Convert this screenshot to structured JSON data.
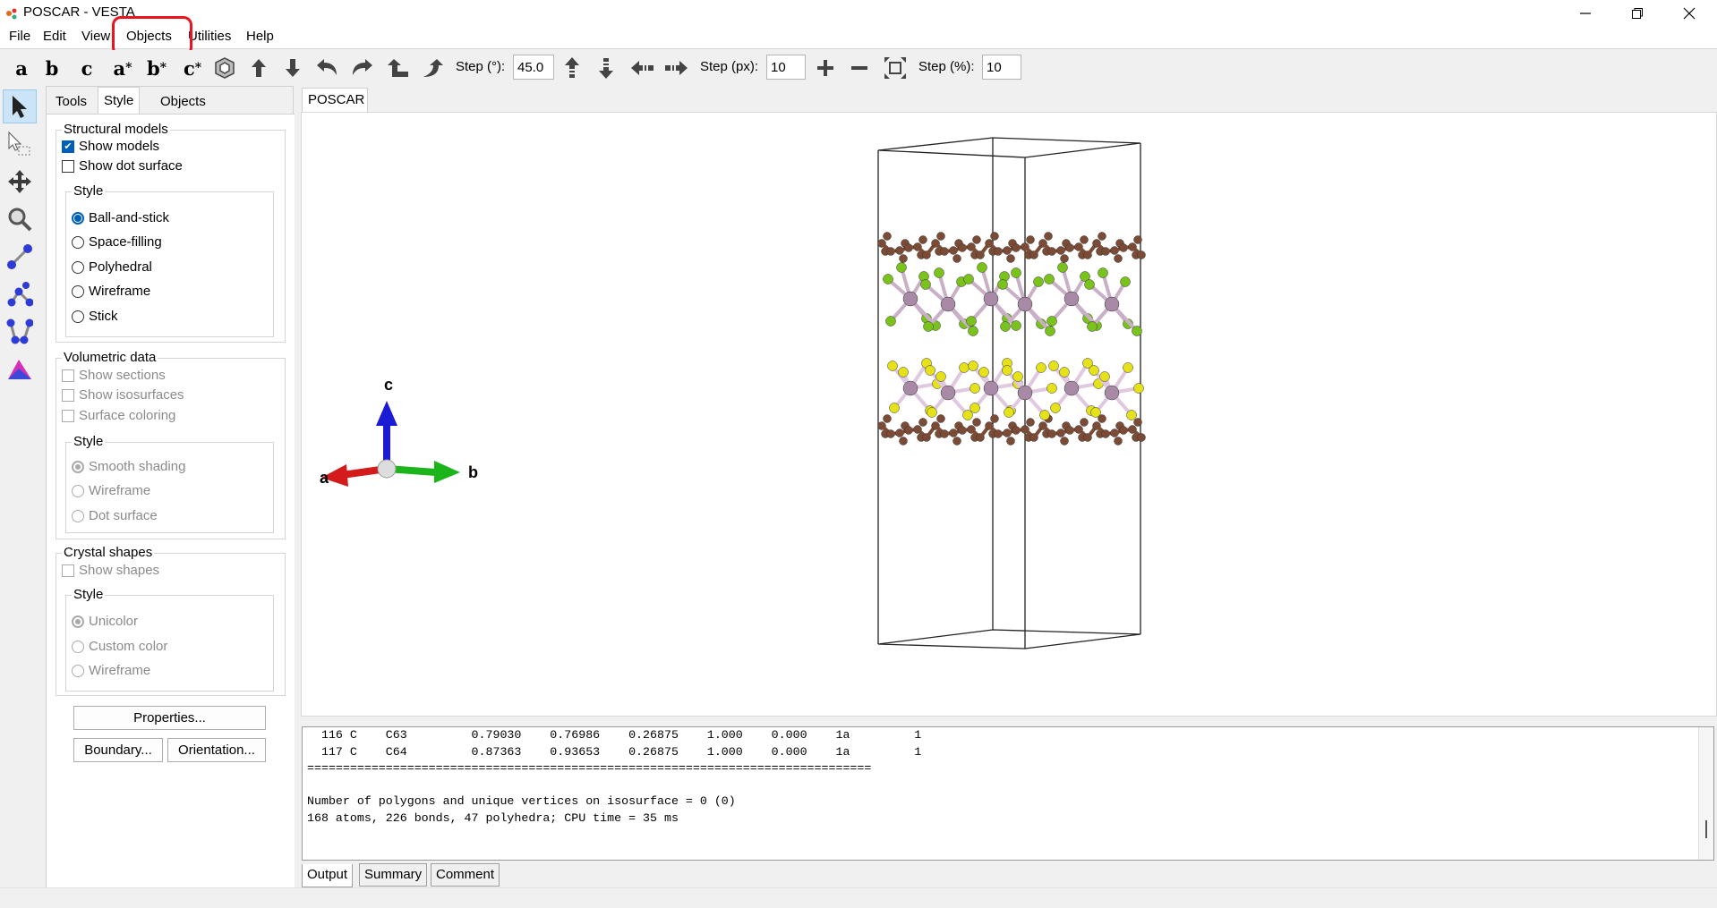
{
  "window": {
    "title": "POSCAR - VESTA"
  },
  "menubar": {
    "items": [
      "File",
      "Edit",
      "View",
      "Objects",
      "Utilities",
      "Help"
    ]
  },
  "toolbar": {
    "axis_buttons": [
      "a",
      "b",
      "c",
      "a",
      "b",
      "c"
    ],
    "axis_star": "*",
    "step_deg_label": "Step (°):",
    "step_deg_value": "45.0",
    "step_px_label": "Step (px):",
    "step_px_value": "10",
    "step_pct_label": "Step (%):",
    "step_pct_value": "10"
  },
  "panel": {
    "tabs": [
      "Tools",
      "Style",
      "Objects"
    ],
    "structural": {
      "title": "Structural models",
      "show_models": "Show models",
      "show_dot_surface": "Show dot surface",
      "style_title": "Style",
      "styles": [
        "Ball-and-stick",
        "Space-filling",
        "Polyhedral",
        "Wireframe",
        "Stick"
      ]
    },
    "volumetric": {
      "title": "Volumetric data",
      "show_sections": "Show sections",
      "show_isosurfaces": "Show isosurfaces",
      "surface_coloring": "Surface coloring",
      "style_title": "Style",
      "styles": [
        "Smooth shading",
        "Wireframe",
        "Dot surface"
      ]
    },
    "crystal": {
      "title": "Crystal shapes",
      "show_shapes": "Show shapes",
      "style_title": "Style",
      "styles": [
        "Unicolor",
        "Custom color",
        "Wireframe"
      ]
    },
    "buttons": {
      "properties": "Properties...",
      "boundary": "Boundary...",
      "orientation": "Orientation..."
    }
  },
  "document_tab": "POSCAR",
  "axes": {
    "a": "a",
    "b": "b",
    "c": "c"
  },
  "console": {
    "lines": [
      "  116 C    C63         0.79030    0.76986    0.26875    1.000    0.000    1a         1",
      "  117 C    C64         0.87363    0.93653    0.26875    1.000    0.000    1a         1",
      "===============================================================================",
      "",
      "Number of polygons and unique vertices on isosurface = 0 (0)",
      "168 atoms, 226 bonds, 47 polyhedra; CPU time = 35 ms"
    ]
  },
  "bottom_tabs": [
    "Output",
    "Summary",
    "Comment"
  ],
  "colors": {
    "highlight": "#e8141e",
    "carbon": "#7b4b36",
    "chlorine": "#7ac21c",
    "sulfur": "#e6e21a",
    "metal": "#a98aa6"
  }
}
